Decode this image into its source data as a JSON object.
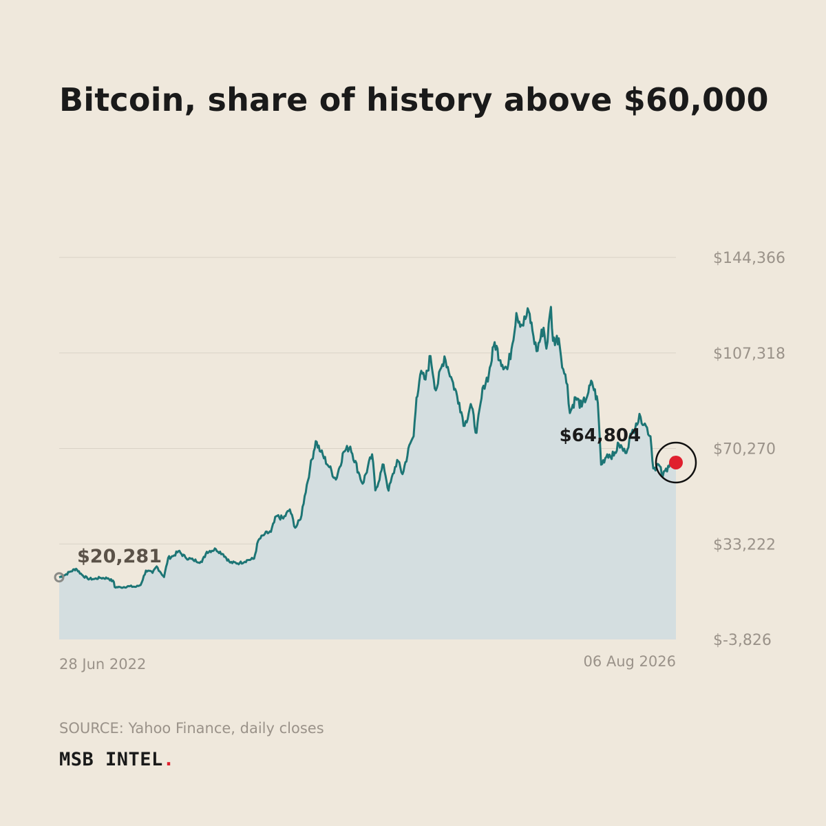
{
  "title": "Bitcoin, share of history above $60,000",
  "source": "SOURCE: Yahoo Finance, daily closes",
  "brand": {
    "name": "MSB INTEL",
    "dot": ".",
    "dot_color": "#e0202e"
  },
  "colors": {
    "background": "#efe8dc",
    "line": "#1d7575",
    "area_fill": "#d4dee0",
    "grid": "#d9d2c6",
    "axis_text": "#9a9289",
    "start_marker": "#8a8a86",
    "end_marker": "#e0202e"
  },
  "chart_data": {
    "type": "area",
    "title": "Bitcoin, share of history above $60,000",
    "xlabel": "",
    "ylabel": "",
    "x_start_label": "28 Jun 2022",
    "x_end_label": "06 Aug 2026",
    "x_range": [
      "2022-06-28",
      "2026-08-06"
    ],
    "ylim": [
      -3826,
      144366
    ],
    "y_ticks": [
      144366,
      107318,
      70270,
      33222,
      -3826
    ],
    "y_tick_labels": [
      "$144,366",
      "$107,318",
      "$70,270",
      "$33,222",
      "$-3,826"
    ],
    "grid": "horizontal",
    "annotations": [
      {
        "label": "$20,281",
        "x": "2022-06-28",
        "y": 20281,
        "role": "start"
      },
      {
        "label": "$64,804",
        "x": "2026-08-06",
        "y": 64804,
        "role": "end"
      }
    ],
    "series": [
      {
        "points": [
          [
            "2022-06-28",
            20281
          ],
          [
            "2022-07-10",
            21000
          ],
          [
            "2022-07-25",
            22500
          ],
          [
            "2022-08-08",
            23600
          ],
          [
            "2022-08-22",
            21300
          ],
          [
            "2022-09-05",
            19800
          ],
          [
            "2022-09-20",
            19600
          ],
          [
            "2022-10-05",
            20100
          ],
          [
            "2022-10-25",
            19900
          ],
          [
            "2022-11-08",
            18500
          ],
          [
            "2022-11-10",
            16500
          ],
          [
            "2022-11-25",
            16400
          ],
          [
            "2022-12-15",
            16800
          ],
          [
            "2023-01-01",
            16600
          ],
          [
            "2023-01-12",
            17300
          ],
          [
            "2023-01-25",
            22900
          ],
          [
            "2023-02-10",
            22000
          ],
          [
            "2023-02-20",
            24500
          ],
          [
            "2023-03-10",
            20400
          ],
          [
            "2023-03-20",
            27800
          ],
          [
            "2023-04-01",
            28500
          ],
          [
            "2023-04-14",
            30400
          ],
          [
            "2023-05-01",
            28000
          ],
          [
            "2023-05-20",
            27000
          ],
          [
            "2023-06-10",
            26200
          ],
          [
            "2023-06-22",
            30200
          ],
          [
            "2023-07-14",
            31200
          ],
          [
            "2023-08-01",
            29200
          ],
          [
            "2023-08-18",
            26000
          ],
          [
            "2023-09-10",
            25800
          ],
          [
            "2023-09-30",
            27000
          ],
          [
            "2023-10-15",
            27500
          ],
          [
            "2023-10-25",
            34500
          ],
          [
            "2023-11-10",
            37100
          ],
          [
            "2023-11-25",
            37900
          ],
          [
            "2023-12-08",
            44000
          ],
          [
            "2023-12-25",
            43100
          ],
          [
            "2024-01-10",
            46600
          ],
          [
            "2024-01-23",
            39500
          ],
          [
            "2024-02-05",
            42800
          ],
          [
            "2024-02-15",
            51800
          ],
          [
            "2024-02-28",
            62500
          ],
          [
            "2024-03-13",
            73100
          ],
          [
            "2024-03-25",
            69000
          ],
          [
            "2024-04-15",
            63000
          ],
          [
            "2024-05-01",
            58200
          ],
          [
            "2024-05-20",
            69000
          ],
          [
            "2024-06-05",
            71000
          ],
          [
            "2024-06-25",
            61000
          ],
          [
            "2024-07-05",
            56600
          ],
          [
            "2024-07-28",
            68000
          ],
          [
            "2024-08-05",
            54000
          ],
          [
            "2024-08-25",
            64000
          ],
          [
            "2024-09-06",
            53900
          ],
          [
            "2024-09-27",
            65800
          ],
          [
            "2024-10-10",
            60300
          ],
          [
            "2024-10-29",
            72300
          ],
          [
            "2024-11-06",
            75000
          ],
          [
            "2024-11-13",
            90000
          ],
          [
            "2024-11-22",
            98900
          ],
          [
            "2024-12-05",
            97000
          ],
          [
            "2024-12-17",
            106100
          ],
          [
            "2024-12-30",
            92800
          ],
          [
            "2025-01-20",
            106000
          ],
          [
            "2025-02-05",
            98000
          ],
          [
            "2025-02-25",
            88000
          ],
          [
            "2025-03-10",
            79000
          ],
          [
            "2025-03-25",
            87500
          ],
          [
            "2025-04-08",
            76300
          ],
          [
            "2025-04-25",
            94600
          ],
          [
            "2025-05-08",
            99000
          ],
          [
            "2025-05-22",
            111500
          ],
          [
            "2025-06-05",
            104500
          ],
          [
            "2025-06-22",
            101000
          ],
          [
            "2025-07-02",
            108800
          ],
          [
            "2025-07-14",
            122800
          ],
          [
            "2025-07-28",
            118000
          ],
          [
            "2025-08-13",
            123400
          ],
          [
            "2025-08-22",
            116000
          ],
          [
            "2025-09-01",
            108000
          ],
          [
            "2025-09-18",
            117100
          ],
          [
            "2025-09-25",
            109000
          ],
          [
            "2025-10-06",
            125200
          ],
          [
            "2025-10-11",
            112000
          ],
          [
            "2025-10-25",
            113000
          ],
          [
            "2025-11-05",
            101000
          ],
          [
            "2025-11-15",
            95000
          ],
          [
            "2025-11-21",
            84000
          ],
          [
            "2025-12-05",
            90000
          ],
          [
            "2025-12-20",
            86500
          ],
          [
            "2026-01-05",
            92000
          ],
          [
            "2026-01-14",
            96000
          ],
          [
            "2026-01-28",
            88000
          ],
          [
            "2026-02-05",
            64000
          ],
          [
            "2026-02-20",
            68000
          ],
          [
            "2026-03-08",
            67500
          ],
          [
            "2026-03-20",
            72000
          ],
          [
            "2026-04-05",
            68500
          ],
          [
            "2026-04-20",
            76000
          ],
          [
            "2026-05-01",
            80000
          ],
          [
            "2026-05-12",
            82500
          ],
          [
            "2026-05-25",
            79000
          ],
          [
            "2026-06-05",
            75000
          ],
          [
            "2026-06-12",
            62500
          ],
          [
            "2026-06-25",
            64000
          ],
          [
            "2026-07-05",
            59500
          ],
          [
            "2026-07-18",
            63500
          ],
          [
            "2026-07-28",
            66500
          ],
          [
            "2026-08-06",
            64804
          ]
        ]
      }
    ]
  }
}
